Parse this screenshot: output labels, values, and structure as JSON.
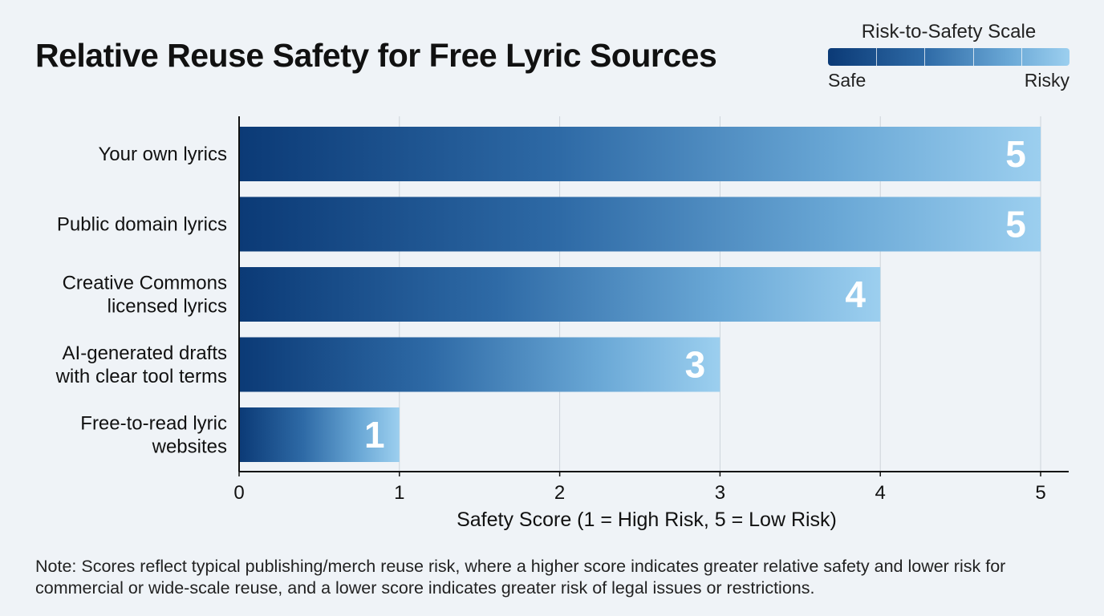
{
  "title": "Relative Reuse Safety for Free Lyric Sources",
  "legend": {
    "title": "Risk-to-Safety Scale",
    "left_label": "Safe",
    "right_label": "Risky",
    "colors": [
      "#0b3a76",
      "#2e6aa6",
      "#6aa8d6",
      "#9ccfef"
    ]
  },
  "note": "Note: Scores reflect typical publishing/merch reuse risk, where a higher score indicates greater relative safety and lower risk for commercial or wide-scale reuse, and a lower score indicates greater risk of legal issues or restrictions.",
  "chart_data": {
    "type": "bar",
    "orientation": "horizontal",
    "title": "Relative Reuse Safety for Free Lyric Sources",
    "xlabel": "Safety Score (1 = High Risk, 5 = Low Risk)",
    "ylabel": "",
    "xlim": [
      0,
      5
    ],
    "xticks": [
      "0",
      "1",
      "2",
      "3",
      "4",
      "5"
    ],
    "grid": true,
    "legend_placement": "top-right",
    "categories": [
      [
        "Your own lyrics"
      ],
      [
        "Public domain lyrics"
      ],
      [
        "Creative Commons",
        "licensed lyrics"
      ],
      [
        "AI-generated drafts",
        "with clear tool terms"
      ],
      [
        "Free-to-read lyric",
        "websites"
      ]
    ],
    "values": [
      5,
      5,
      4,
      3,
      1
    ],
    "data_labels": [
      "5",
      "5",
      "4",
      "3",
      "1"
    ],
    "bar_colors": [
      "#0b3a76",
      "#2e6aa6",
      "#6aa8d6",
      "#9ccfef"
    ]
  }
}
